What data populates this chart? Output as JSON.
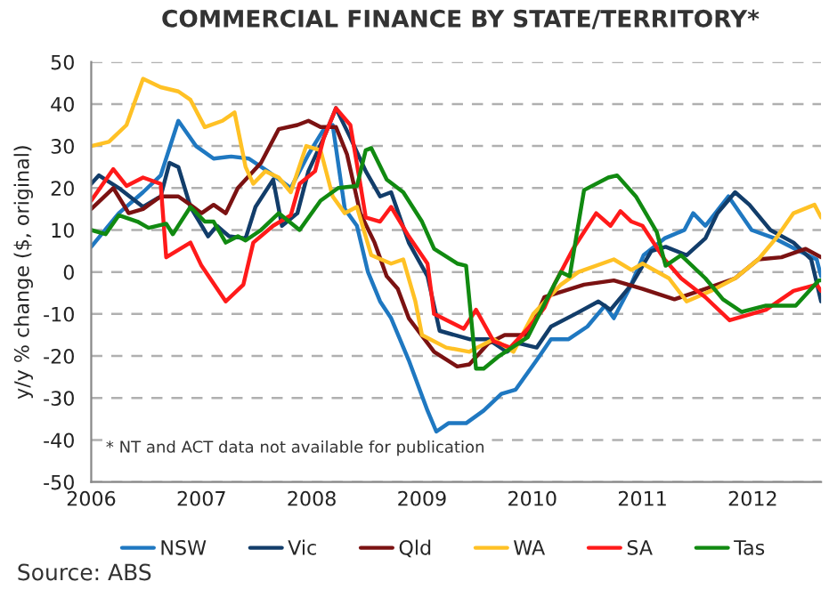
{
  "chart_data": {
    "type": "line",
    "title": "COMMERCIAL FINANCE BY STATE/TERRITORY*",
    "ylabel": "y/y % change ($, original)",
    "annotations": [
      "* NT and ACT data not available for publication",
      "Source: ABS"
    ],
    "xlim": [
      2006,
      2012.62
    ],
    "xticks": [
      2006,
      2007,
      2008,
      2009,
      2010,
      2011,
      2012
    ],
    "ylim": [
      -50,
      50
    ],
    "yticks": [
      -50,
      -40,
      -30,
      -20,
      -10,
      0,
      10,
      20,
      30,
      40,
      50
    ],
    "grid": "y",
    "legend": "bottom",
    "line_style": "solid",
    "marker": "none",
    "series": [
      {
        "name": "NSW",
        "color": "#1f78c1",
        "x": [
          2006.0,
          2006.25,
          2006.47,
          2006.63,
          2006.79,
          2006.95,
          2007.11,
          2007.27,
          2007.43,
          2007.6,
          2007.81,
          2007.97,
          2008.11,
          2008.19,
          2008.3,
          2008.41,
          2008.51,
          2008.62,
          2008.72,
          2008.88,
          2009.05,
          2009.13,
          2009.24,
          2009.4,
          2009.56,
          2009.72,
          2009.85,
          2010.04,
          2010.17,
          2010.33,
          2010.5,
          2010.66,
          2010.74,
          2010.88,
          2011.01,
          2011.2,
          2011.38,
          2011.46,
          2011.57,
          2011.78,
          2011.99,
          2012.2,
          2012.42,
          2012.58,
          2012.62
        ],
        "values": [
          6,
          14,
          19,
          23,
          36,
          30,
          27,
          27.5,
          27,
          24,
          20,
          28,
          34,
          35,
          15,
          11,
          0,
          -7,
          -11,
          -21,
          -33,
          -38,
          -36,
          -36,
          -33,
          -29,
          -28,
          -21,
          -16,
          -16,
          -13,
          -8,
          -11,
          -4,
          4,
          8,
          10,
          14,
          11,
          18,
          10,
          8,
          5,
          3,
          -1
        ]
      },
      {
        "name": "Vic",
        "color": "#123d6a",
        "x": [
          2006.0,
          2006.07,
          2006.25,
          2006.47,
          2006.63,
          2006.71,
          2006.79,
          2006.9,
          2007.06,
          2007.14,
          2007.25,
          2007.4,
          2007.49,
          2007.65,
          2007.73,
          2007.87,
          2007.97,
          2008.11,
          2008.22,
          2008.35,
          2008.49,
          2008.62,
          2008.72,
          2008.88,
          2009.05,
          2009.16,
          2009.43,
          2009.6,
          2009.77,
          2009.88,
          2010.04,
          2010.17,
          2010.39,
          2010.6,
          2010.71,
          2010.9,
          2011.08,
          2011.21,
          2011.4,
          2011.57,
          2011.68,
          2011.84,
          2011.97,
          2012.16,
          2012.37,
          2012.53,
          2012.62
        ],
        "values": [
          21,
          23,
          20,
          15.5,
          18,
          26,
          25,
          15.5,
          8.5,
          11,
          8.5,
          8,
          15.5,
          22,
          11,
          14,
          24,
          32,
          39,
          32,
          24,
          18,
          19,
          7,
          -1,
          -14,
          -16,
          -16,
          -19,
          -17,
          -18,
          -13,
          -10,
          -7,
          -9,
          -3,
          5,
          6,
          4,
          8,
          14,
          19,
          16,
          10,
          7,
          3,
          -7
        ]
      },
      {
        "name": "Qld",
        "color": "#7b1212",
        "x": [
          2006.0,
          2006.2,
          2006.34,
          2006.47,
          2006.63,
          2006.79,
          2006.9,
          2007.0,
          2007.11,
          2007.22,
          2007.33,
          2007.54,
          2007.7,
          2007.87,
          2007.97,
          2008.08,
          2008.22,
          2008.32,
          2008.44,
          2008.57,
          2008.68,
          2008.78,
          2008.88,
          2009.11,
          2009.32,
          2009.43,
          2009.6,
          2009.75,
          2009.96,
          2010.11,
          2010.47,
          2010.74,
          2011.0,
          2011.29,
          2011.57,
          2011.84,
          2012.05,
          2012.26,
          2012.48,
          2012.62
        ],
        "values": [
          15,
          20,
          14,
          15,
          18,
          18,
          16,
          14,
          16,
          14,
          20,
          26,
          34,
          35,
          36,
          34.5,
          34.5,
          28,
          14,
          7,
          -1,
          -4,
          -11,
          -19,
          -22.5,
          -22,
          -17,
          -15,
          -15,
          -6,
          -3,
          -2,
          -4,
          -6.5,
          -4,
          -1.5,
          3,
          3.5,
          5.5,
          3.5
        ]
      },
      {
        "name": "WA",
        "color": "#ffc125",
        "x": [
          2006.0,
          2006.16,
          2006.32,
          2006.47,
          2006.63,
          2006.79,
          2006.9,
          2007.03,
          2007.19,
          2007.3,
          2007.4,
          2007.47,
          2007.58,
          2007.7,
          2007.81,
          2007.95,
          2008.08,
          2008.19,
          2008.3,
          2008.41,
          2008.54,
          2008.72,
          2008.83,
          2008.94,
          2009.0,
          2009.22,
          2009.43,
          2009.65,
          2009.83,
          2010.01,
          2010.26,
          2010.42,
          2010.74,
          2010.9,
          2011.0,
          2011.24,
          2011.4,
          2011.62,
          2011.84,
          2012.05,
          2012.21,
          2012.37,
          2012.56,
          2012.62
        ],
        "values": [
          30,
          31,
          35,
          46,
          44,
          43,
          41,
          34.5,
          36,
          38,
          25,
          21,
          24,
          22.5,
          19,
          30,
          29,
          18,
          14,
          15.5,
          4,
          2,
          3,
          -7,
          -15,
          -18,
          -19,
          -16,
          -19,
          -10,
          -3,
          0,
          3,
          0.5,
          2,
          -1.5,
          -7,
          -4.5,
          -1.5,
          3,
          8,
          14,
          16,
          13
        ]
      },
      {
        "name": "SA",
        "color": "#ff1a1a",
        "x": [
          2006.0,
          2006.2,
          2006.32,
          2006.47,
          2006.63,
          2006.68,
          2006.9,
          2007.0,
          2007.22,
          2007.38,
          2007.47,
          2007.65,
          2007.81,
          2007.89,
          2008.03,
          2008.11,
          2008.22,
          2008.35,
          2008.44,
          2008.49,
          2008.62,
          2008.72,
          2008.88,
          2009.05,
          2009.11,
          2009.38,
          2009.49,
          2009.65,
          2009.8,
          2009.96,
          2010.11,
          2010.2,
          2010.37,
          2010.58,
          2010.71,
          2010.8,
          2010.9,
          2011.0,
          2011.2,
          2011.35,
          2011.57,
          2011.79,
          2012.12,
          2012.37,
          2012.58,
          2012.62
        ],
        "values": [
          17,
          24.5,
          20.5,
          22.5,
          21,
          3.5,
          7,
          1.5,
          -7,
          -3,
          7,
          11,
          13.5,
          21,
          24,
          32,
          39,
          35,
          21,
          13,
          12,
          15.5,
          8.5,
          2,
          -10,
          -13.5,
          -9,
          -16.5,
          -18,
          -13.5,
          -8.5,
          -3,
          5.5,
          14,
          11,
          14.5,
          12,
          11,
          3,
          -1.5,
          -6,
          -11.5,
          -9,
          -4.5,
          -3,
          -4.5
        ]
      },
      {
        "name": "Tas",
        "color": "#118a11",
        "x": [
          2006.0,
          2006.13,
          2006.25,
          2006.42,
          2006.52,
          2006.68,
          2006.74,
          2006.9,
          2007.03,
          2007.11,
          2007.22,
          2007.33,
          2007.4,
          2007.54,
          2007.7,
          2007.89,
          2008.08,
          2008.24,
          2008.41,
          2008.49,
          2008.54,
          2008.68,
          2008.83,
          2009.0,
          2009.11,
          2009.32,
          2009.4,
          2009.49,
          2009.56,
          2009.7,
          2009.96,
          2010.17,
          2010.26,
          2010.34,
          2010.47,
          2010.69,
          2010.77,
          2010.94,
          2011.13,
          2011.21,
          2011.35,
          2011.57,
          2011.73,
          2011.9,
          2012.12,
          2012.39,
          2012.6,
          2012.62
        ],
        "values": [
          10,
          9,
          13.5,
          12,
          10.5,
          11.5,
          9,
          15.5,
          12,
          12,
          7,
          8.5,
          7.5,
          10,
          14,
          10,
          17,
          20,
          20.5,
          29,
          29.5,
          22,
          19,
          12,
          5.5,
          2,
          1.5,
          -23,
          -23,
          -20,
          -15.5,
          -4.5,
          0,
          -1,
          19.5,
          22.5,
          23,
          18,
          9.5,
          1.5,
          4,
          -1.5,
          -6.5,
          -9.5,
          -8,
          -8,
          -2,
          -2
        ]
      }
    ]
  }
}
